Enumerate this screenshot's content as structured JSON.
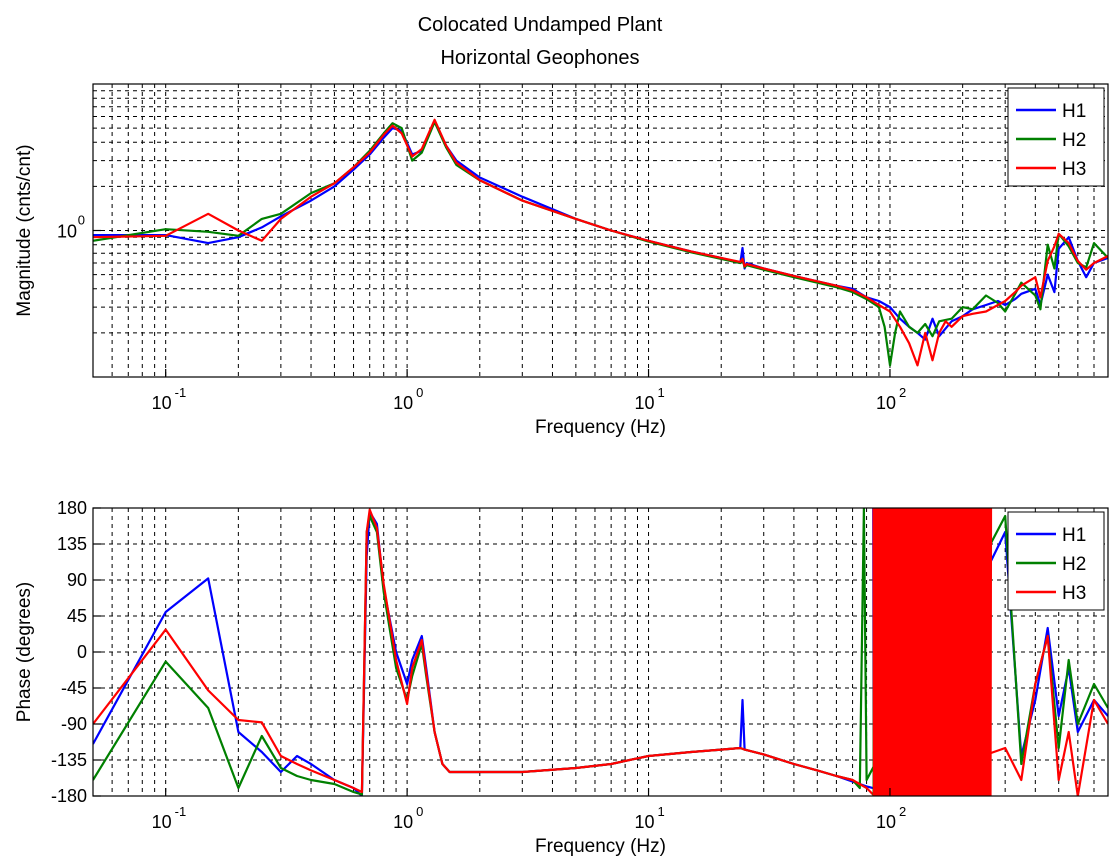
{
  "chart_data": [
    {
      "type": "line",
      "title": [
        "Colocated Undamped Plant",
        "Horizontal Geophones"
      ],
      "xlabel": "Frequency (Hz)",
      "ylabel": "Magnitude (cnts/cnt)",
      "xscale": "log",
      "yscale": "log",
      "xlim": [
        0.05,
        800
      ],
      "ylim": [
        0.1,
        10
      ],
      "xticks": [
        {
          "value": 0.1,
          "base": "10",
          "exp": "-1"
        },
        {
          "value": 1,
          "base": "10",
          "exp": "0"
        },
        {
          "value": 10,
          "base": "10",
          "exp": "1"
        },
        {
          "value": 100,
          "base": "10",
          "exp": "2"
        }
      ],
      "yticks": [
        {
          "value": 1,
          "label": "10",
          "exp": "0"
        }
      ],
      "grid": true,
      "legend_position": "top-right",
      "series": [
        {
          "name": "H1",
          "color": "#0000ff",
          "x": [
            0.05,
            0.1,
            0.15,
            0.2,
            0.25,
            0.3,
            0.4,
            0.5,
            0.6,
            0.7,
            0.8,
            0.87,
            0.95,
            1.05,
            1.15,
            1.3,
            1.45,
            1.6,
            2,
            3,
            5,
            7,
            10,
            15,
            20,
            24,
            24.5,
            25,
            25.5,
            30,
            40,
            50,
            60,
            70,
            80,
            90,
            100,
            110,
            120,
            130,
            140,
            150,
            160,
            180,
            200,
            220,
            250,
            280,
            300,
            330,
            350,
            400,
            420,
            450,
            480,
            500,
            550,
            600,
            650,
            700,
            800
          ],
          "y": [
            0.93,
            0.93,
            0.82,
            0.9,
            1.05,
            1.25,
            1.6,
            2.0,
            2.6,
            3.3,
            4.3,
            5.0,
            4.8,
            3.3,
            3.5,
            5.6,
            3.8,
            3.0,
            2.3,
            1.7,
            1.2,
            1.0,
            0.85,
            0.72,
            0.65,
            0.6,
            0.76,
            0.55,
            0.6,
            0.55,
            0.49,
            0.45,
            0.42,
            0.4,
            0.35,
            0.33,
            0.3,
            0.25,
            0.22,
            0.2,
            0.18,
            0.25,
            0.19,
            0.24,
            0.26,
            0.29,
            0.31,
            0.33,
            0.31,
            0.34,
            0.37,
            0.4,
            0.31,
            0.5,
            0.38,
            0.75,
            0.9,
            0.62,
            0.48,
            0.6,
            0.65
          ]
        },
        {
          "name": "H2",
          "color": "#008000",
          "x": [
            0.05,
            0.1,
            0.15,
            0.2,
            0.25,
            0.3,
            0.4,
            0.5,
            0.6,
            0.7,
            0.8,
            0.87,
            0.95,
            1.05,
            1.15,
            1.3,
            1.45,
            1.6,
            2,
            3,
            5,
            7,
            10,
            15,
            20,
            24,
            24.5,
            25,
            25.5,
            30,
            40,
            50,
            60,
            70,
            80,
            90,
            95,
            100,
            105,
            110,
            120,
            130,
            140,
            150,
            160,
            180,
            200,
            220,
            250,
            280,
            300,
            330,
            350,
            400,
            420,
            450,
            480,
            500,
            550,
            600,
            650,
            700,
            800
          ],
          "y": [
            0.85,
            1.02,
            0.98,
            0.92,
            1.2,
            1.3,
            1.8,
            2.1,
            2.7,
            3.5,
            4.6,
            5.4,
            5.0,
            3.0,
            3.4,
            5.5,
            3.7,
            2.8,
            2.2,
            1.6,
            1.2,
            1.0,
            0.84,
            0.71,
            0.64,
            0.6,
            0.64,
            0.56,
            0.58,
            0.54,
            0.48,
            0.44,
            0.41,
            0.38,
            0.34,
            0.3,
            0.22,
            0.12,
            0.2,
            0.28,
            0.22,
            0.2,
            0.23,
            0.19,
            0.24,
            0.25,
            0.3,
            0.29,
            0.36,
            0.32,
            0.28,
            0.37,
            0.44,
            0.36,
            0.29,
            0.8,
            0.55,
            0.95,
            0.78,
            0.6,
            0.56,
            0.82,
            0.65
          ]
        },
        {
          "name": "H3",
          "color": "#ff0000",
          "x": [
            0.05,
            0.1,
            0.15,
            0.2,
            0.25,
            0.3,
            0.4,
            0.5,
            0.6,
            0.7,
            0.8,
            0.87,
            0.95,
            1.05,
            1.15,
            1.3,
            1.45,
            1.6,
            2,
            3,
            5,
            7,
            10,
            15,
            20,
            24,
            24.5,
            25,
            25.5,
            30,
            40,
            50,
            60,
            70,
            80,
            90,
            100,
            110,
            120,
            130,
            140,
            150,
            160,
            170,
            180,
            200,
            220,
            250,
            280,
            300,
            330,
            350,
            400,
            420,
            450,
            480,
            500,
            550,
            600,
            650,
            700,
            800
          ],
          "y": [
            0.9,
            0.92,
            1.3,
            1.0,
            0.85,
            1.2,
            1.7,
            2.1,
            2.7,
            3.4,
            4.5,
            5.2,
            4.6,
            3.2,
            3.6,
            5.7,
            3.8,
            2.9,
            2.2,
            1.6,
            1.2,
            1.0,
            0.85,
            0.72,
            0.65,
            0.61,
            0.64,
            0.57,
            0.59,
            0.55,
            0.49,
            0.45,
            0.42,
            0.39,
            0.35,
            0.31,
            0.28,
            0.22,
            0.17,
            0.12,
            0.2,
            0.13,
            0.2,
            0.24,
            0.22,
            0.26,
            0.27,
            0.28,
            0.31,
            0.33,
            0.38,
            0.42,
            0.48,
            0.35,
            0.62,
            0.78,
            0.95,
            0.82,
            0.62,
            0.54,
            0.6,
            0.67
          ]
        }
      ]
    },
    {
      "type": "line",
      "xlabel": "Frequency (Hz)",
      "ylabel": "Phase (degrees)",
      "xscale": "log",
      "xlim": [
        0.05,
        800
      ],
      "ylim": [
        -180,
        180
      ],
      "xticks": [
        {
          "value": 0.1,
          "base": "10",
          "exp": "-1"
        },
        {
          "value": 1,
          "base": "10",
          "exp": "0"
        },
        {
          "value": 10,
          "base": "10",
          "exp": "1"
        },
        {
          "value": 100,
          "base": "10",
          "exp": "2"
        }
      ],
      "yticks": [
        {
          "value": 180,
          "label": "180"
        },
        {
          "value": 135,
          "label": "135"
        },
        {
          "value": 90,
          "label": "90"
        },
        {
          "value": 45,
          "label": "45"
        },
        {
          "value": 0,
          "label": "0"
        },
        {
          "value": -45,
          "label": "-45"
        },
        {
          "value": -90,
          "label": "-90"
        },
        {
          "value": -135,
          "label": "-135"
        },
        {
          "value": -180,
          "label": "-180"
        }
      ],
      "grid": true,
      "legend_position": "top-right",
      "noisy_band": {
        "from": 85,
        "to": 260,
        "range": [
          -180,
          180
        ]
      },
      "series": [
        {
          "name": "H1",
          "color": "#0000ff",
          "x": [
            0.05,
            0.1,
            0.15,
            0.2,
            0.25,
            0.3,
            0.35,
            0.4,
            0.5,
            0.6,
            0.65,
            0.68,
            0.7,
            0.75,
            0.8,
            0.9,
            1.0,
            1.05,
            1.15,
            1.2,
            1.3,
            1.4,
            1.5,
            2,
            3,
            5,
            7,
            10,
            15,
            20,
            24,
            24.5,
            25,
            30,
            40,
            50,
            60,
            70,
            80,
            90,
            300,
            350,
            400,
            450,
            500,
            550,
            600,
            700,
            800
          ],
          "y": [
            -115,
            50,
            92,
            -100,
            -125,
            -150,
            -130,
            -140,
            -160,
            -170,
            -180,
            120,
            175,
            160,
            80,
            0,
            -40,
            -10,
            20,
            -20,
            -100,
            -140,
            -150,
            -150,
            -150,
            -145,
            -140,
            -130,
            -125,
            -122,
            -120,
            -60,
            -122,
            -128,
            -140,
            -148,
            -155,
            -162,
            -168,
            -172,
            150,
            -130,
            -60,
            30,
            -80,
            -20,
            -100,
            -60,
            -80
          ]
        },
        {
          "name": "H2",
          "color": "#008000",
          "x": [
            0.05,
            0.1,
            0.15,
            0.2,
            0.25,
            0.3,
            0.35,
            0.4,
            0.5,
            0.6,
            0.65,
            0.68,
            0.7,
            0.75,
            0.8,
            0.9,
            1.0,
            1.05,
            1.15,
            1.2,
            1.3,
            1.4,
            1.5,
            2,
            3,
            5,
            7,
            10,
            15,
            20,
            24,
            25,
            30,
            40,
            50,
            60,
            70,
            75,
            78,
            80,
            300,
            350,
            400,
            450,
            500,
            550,
            600,
            700,
            800
          ],
          "y": [
            -160,
            -12,
            -70,
            -170,
            -105,
            -145,
            -155,
            -160,
            -165,
            -175,
            -178,
            150,
            170,
            150,
            75,
            -20,
            -60,
            -30,
            10,
            -30,
            -100,
            -140,
            -150,
            -150,
            -150,
            -145,
            -140,
            -130,
            -125,
            -122,
            -120,
            -122,
            -128,
            -140,
            -148,
            -155,
            -160,
            -170,
            180,
            -160,
            170,
            -140,
            -40,
            20,
            -120,
            -10,
            -90,
            -40,
            -70
          ]
        },
        {
          "name": "H3",
          "color": "#ff0000",
          "x": [
            0.05,
            0.1,
            0.15,
            0.2,
            0.25,
            0.3,
            0.35,
            0.4,
            0.5,
            0.6,
            0.65,
            0.68,
            0.7,
            0.75,
            0.8,
            0.9,
            1.0,
            1.05,
            1.15,
            1.2,
            1.3,
            1.4,
            1.5,
            2,
            3,
            5,
            7,
            10,
            15,
            20,
            24,
            25,
            30,
            40,
            50,
            60,
            70,
            80,
            85,
            300,
            350,
            400,
            450,
            500,
            550,
            600,
            700,
            800
          ],
          "y": [
            -90,
            28,
            -48,
            -85,
            -88,
            -130,
            -140,
            -148,
            -160,
            -170,
            -175,
            150,
            178,
            155,
            85,
            -10,
            -65,
            -20,
            15,
            -25,
            -100,
            -140,
            -150,
            -150,
            -150,
            -145,
            -140,
            -130,
            -125,
            -122,
            -120,
            -122,
            -128,
            -140,
            -148,
            -155,
            -160,
            -170,
            -178,
            -120,
            -160,
            -40,
            20,
            -160,
            -100,
            -180,
            -60,
            -90
          ]
        }
      ]
    }
  ]
}
